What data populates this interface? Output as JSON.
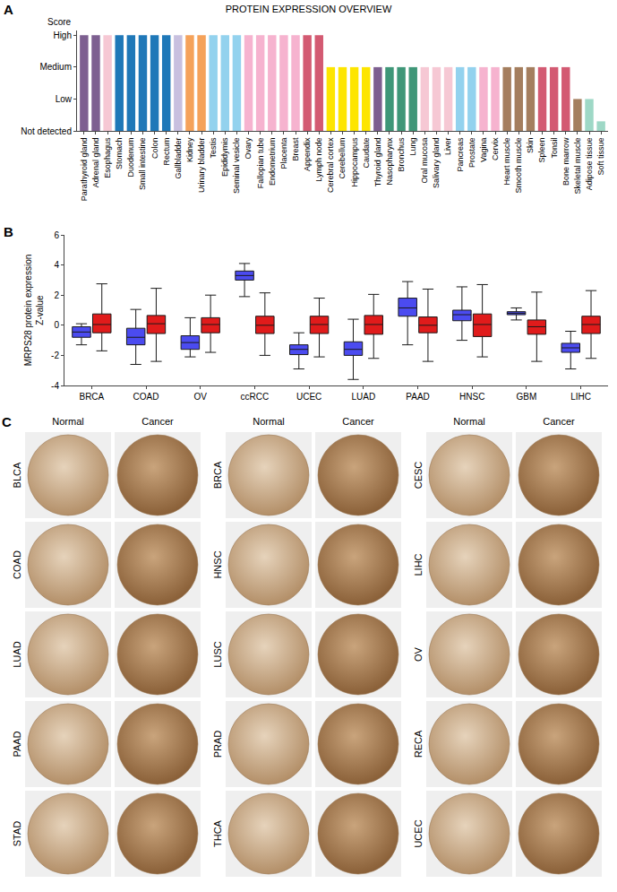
{
  "chart_data": [
    {
      "panel": "A",
      "type": "bar",
      "title": "PROTEIN EXPRESSION OVERVIEW",
      "y_label": "Score",
      "categories": [
        "Parathyroid gland",
        "Adrenal gland",
        "Esophagus",
        "Stomach",
        "Duodenum",
        "Small intestine",
        "Colon",
        "Rectum",
        "Gallbladder",
        "Kidney",
        "Urinary bladder",
        "Testis",
        "Epididymis",
        "Seminal vesicle",
        "Ovary",
        "Fallopian tube",
        "Endometrium",
        "Placenta",
        "Breast",
        "Appendix",
        "Lymph node",
        "Cerebral cortex",
        "Cerebellum",
        "Hippocampus",
        "Caudate",
        "Thyroid gland",
        "Nasopharynx",
        "Bronchus",
        "Lung",
        "Oral mucosa",
        "Salivary gland",
        "Liver",
        "Pancreas",
        "Prostate",
        "Vagina",
        "Cervix",
        "Heart muscle",
        "Smooth muscle",
        "Skin",
        "Spleen",
        "Tonsil",
        "Bone marrow",
        "Skeletal muscle",
        "Adipose tissue",
        "Soft tissue"
      ],
      "values": [
        3,
        3,
        3,
        3,
        3,
        3,
        3,
        3,
        3,
        3,
        3,
        3,
        3,
        3,
        3,
        3,
        3,
        3,
        3,
        3,
        3,
        2,
        2,
        2,
        2,
        2,
        2,
        2,
        2,
        2,
        2,
        2,
        2,
        2,
        2,
        2,
        2,
        2,
        2,
        2,
        2,
        2,
        1,
        1,
        0.3
      ],
      "colors": [
        "#7d5f90",
        "#7d5f90",
        "#f6c8d4",
        "#1f78b8",
        "#1f78b8",
        "#1f78b8",
        "#1f78b8",
        "#1f78b8",
        "#c8c0df",
        "#f5a25a",
        "#f5a25a",
        "#93d2ee",
        "#93d2ee",
        "#93d2ee",
        "#f6b3cf",
        "#f6b3cf",
        "#f6b3cf",
        "#f6b3cf",
        "#f6b3cf",
        "#d35a72",
        "#d35a72",
        "#fde500",
        "#fde500",
        "#fde500",
        "#fde500",
        "#7d5f90",
        "#3f9778",
        "#3f9778",
        "#3f9778",
        "#f6c8d4",
        "#f6c8d4",
        "#f6c8d4",
        "#93d2ee",
        "#93d2ee",
        "#f6b3cf",
        "#f6b3cf",
        "#a47e5e",
        "#a47e5e",
        "#a47e5e",
        "#d35a72",
        "#d35a72",
        "#d35a72",
        "#a47e5e",
        "#9ed8c6",
        "#9ed8c6"
      ],
      "ylim": [
        0,
        3.15
      ],
      "yticks": [
        {
          "value": 0,
          "label": "Not detected"
        },
        {
          "value": 1,
          "label": "Low"
        },
        {
          "value": 2,
          "label": "Medium"
        },
        {
          "value": 3,
          "label": "High"
        }
      ],
      "grid": false
    },
    {
      "panel": "B",
      "type": "box",
      "y_label": [
        "MRPS28 protein expression",
        "Z-value"
      ],
      "categories": [
        "BRCA",
        "COAD",
        "OV",
        "ccRCC",
        "UCEC",
        "LUAD",
        "PAAD",
        "HNSC",
        "GBM",
        "LIHC"
      ],
      "series": [
        {
          "color": "#4b4bf0",
          "lower": [
            -1.3,
            -2.6,
            -2.1,
            1.9,
            -2.9,
            -3.6,
            -1.3,
            -1.0,
            0.35,
            -2.9
          ],
          "q1": [
            -0.8,
            -1.3,
            -1.6,
            3.0,
            -1.95,
            -2.0,
            0.6,
            0.3,
            0.7,
            -1.8
          ],
          "median": [
            -0.45,
            -0.8,
            -1.15,
            3.3,
            -1.6,
            -1.6,
            1.15,
            0.7,
            0.8,
            -1.5
          ],
          "q3": [
            -0.1,
            -0.2,
            -0.7,
            3.6,
            -1.3,
            -1.1,
            1.8,
            1.0,
            0.9,
            -1.2
          ],
          "upper": [
            0.1,
            1.05,
            0.5,
            4.1,
            -0.5,
            0.4,
            2.9,
            2.55,
            1.15,
            -0.4
          ]
        },
        {
          "color": "#e01b1b",
          "lower": [
            -1.7,
            -2.4,
            -1.8,
            -2.0,
            -2.1,
            -2.2,
            -2.4,
            -2.1,
            -2.4,
            -2.2
          ],
          "q1": [
            -0.5,
            -0.55,
            -0.5,
            -0.55,
            -0.55,
            -0.6,
            -0.5,
            -0.75,
            -0.6,
            -0.55
          ],
          "median": [
            0.05,
            0.1,
            0.05,
            0.0,
            0.05,
            0.05,
            0.0,
            0.05,
            -0.1,
            0.05
          ],
          "q3": [
            0.75,
            0.65,
            0.5,
            0.6,
            0.6,
            0.65,
            0.55,
            0.75,
            0.35,
            0.6
          ],
          "upper": [
            2.75,
            2.45,
            2.0,
            2.15,
            1.8,
            2.05,
            2.4,
            2.7,
            2.2,
            2.3
          ]
        }
      ],
      "ylim": [
        -4,
        6
      ],
      "yticks": [
        -4,
        -2,
        0,
        2,
        4,
        6
      ],
      "grid": false
    }
  ],
  "image_grid": {
    "panel": "C",
    "column_heads": [
      "Normal",
      "Cancer"
    ],
    "rows": [
      [
        "BLCA",
        "BRCA",
        "CESC"
      ],
      [
        "COAD",
        "HNSC",
        "LIHC"
      ],
      [
        "LUAD",
        "LUSC",
        "OV"
      ],
      [
        "PAAD",
        "PRAD",
        "RECA"
      ],
      [
        "STAD",
        "THCA",
        "UCEC"
      ]
    ]
  }
}
